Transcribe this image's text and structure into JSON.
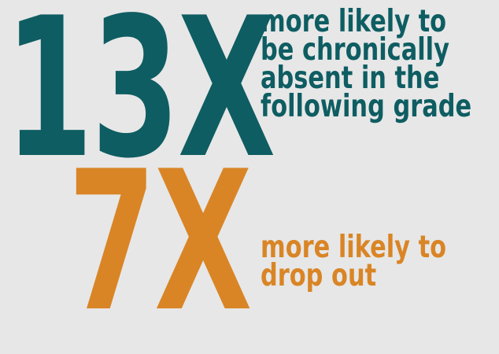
{
  "colors": {
    "background": "#e7e7e7",
    "teal": "#0e5d62",
    "orange": "#d98526"
  },
  "stats": [
    {
      "value": "13X",
      "lines": [
        "more likely to",
        "be chronically",
        "absent in the",
        "following grade"
      ]
    },
    {
      "value": "7X",
      "lines": [
        "more likely to",
        "drop out"
      ]
    }
  ]
}
